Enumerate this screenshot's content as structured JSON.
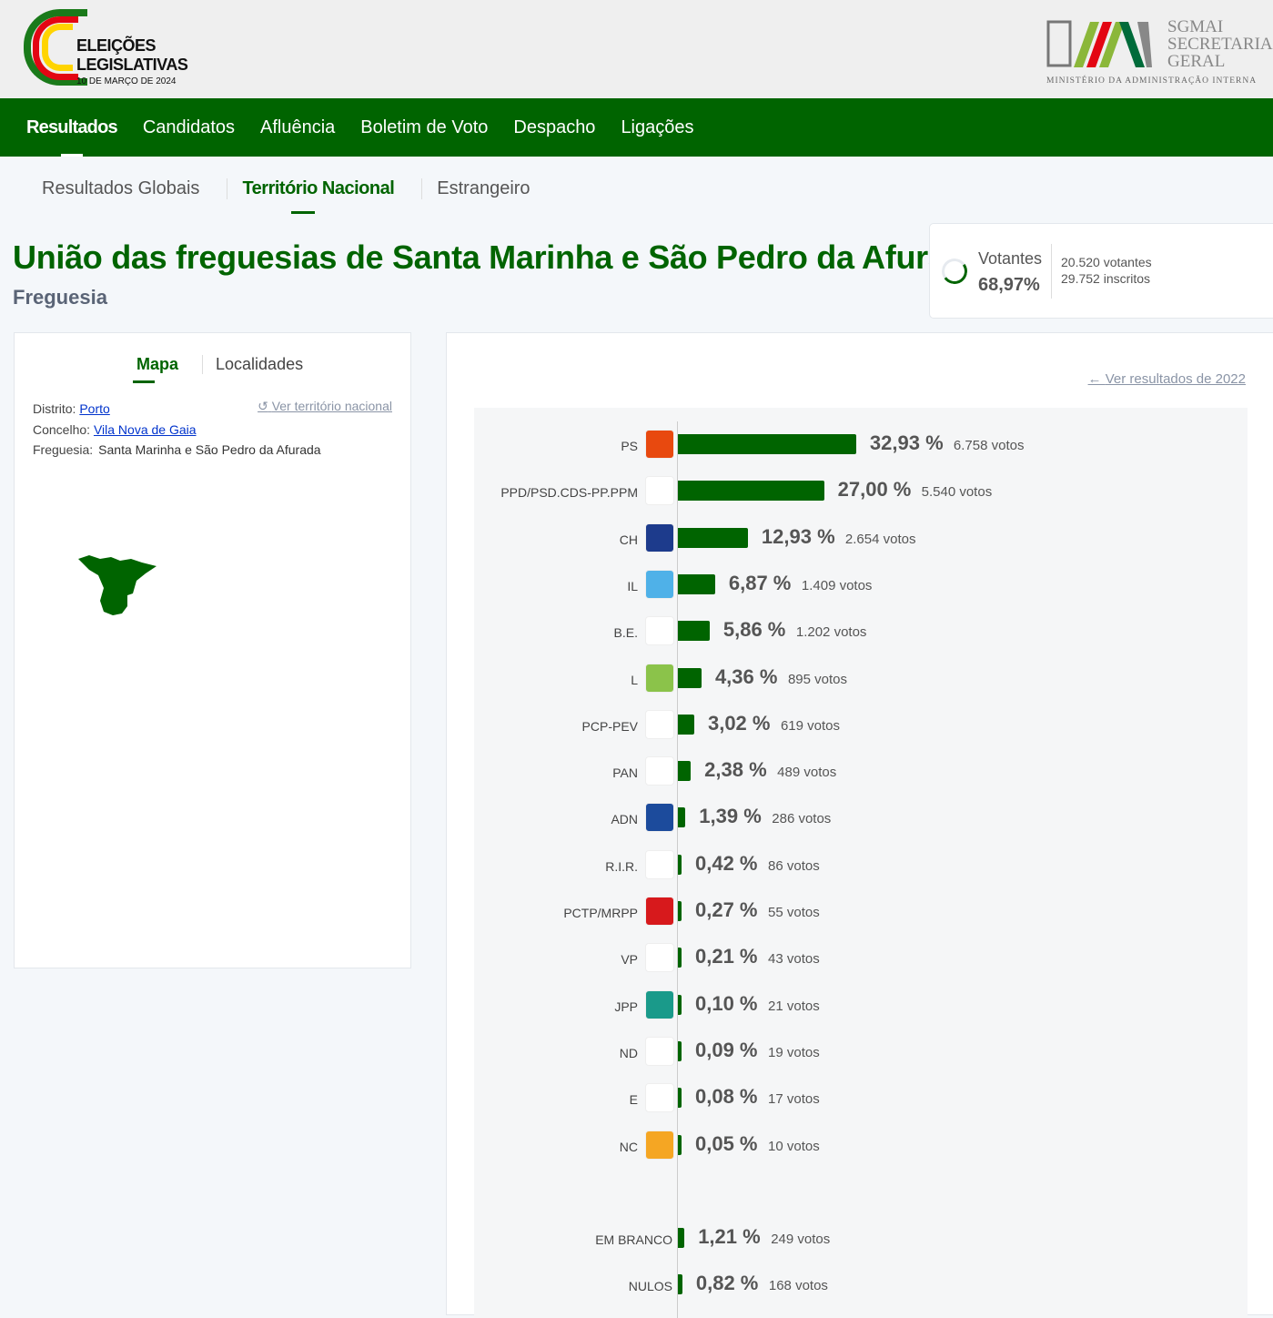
{
  "header": {
    "logo_title": "ELEIÇÕES LEGISLATIVAS",
    "logo_date": "10 DE MARÇO DE 2024",
    "org_name": "SGMAI SECRETARIA GERAL",
    "org_ministry": "MINISTÉRIO DA ADMINISTRAÇÃO INTERNA"
  },
  "nav": [
    "Resultados",
    "Candidatos",
    "Afluência",
    "Boletim de Voto",
    "Despacho",
    "Ligações"
  ],
  "subnav": [
    "Resultados Globais",
    "Território Nacional",
    "Estrangeiro"
  ],
  "title": "União das freguesias de Santa Marinha e São Pedro da Afurada",
  "kind": "Freguesia",
  "turnout": {
    "label": "Votantes",
    "percent": "68,97%",
    "fraction": 0.6897,
    "voters": "20.520 votantes",
    "registered": "29.752 inscritos"
  },
  "left": {
    "tabs": [
      "Mapa",
      "Localidades"
    ],
    "distrito_label": "Distrito:",
    "distrito": "Porto",
    "concelho_label": "Concelho:",
    "concelho": "Vila Nova de Gaia",
    "freguesia_label": "Freguesia:",
    "freguesia": "Santa Marinha e São Pedro da Afurada",
    "link": "Ver território nacional"
  },
  "results_link": "Ver resultados de 2022",
  "chart_data": {
    "type": "bar",
    "orientation": "horizontal",
    "bar_color": "#006400",
    "rows": [
      {
        "party": "PS",
        "pct": 32.93,
        "pct_label": "32,93 %",
        "votes": "6.758 votos",
        "logo_color": "#e8490f"
      },
      {
        "party": "PPD/PSD.CDS-PP.PPM",
        "pct": 27.0,
        "pct_label": "27,00 %",
        "votes": "5.540 votos",
        "logo_color": "#ffffff"
      },
      {
        "party": "CH",
        "pct": 12.93,
        "pct_label": "12,93 %",
        "votes": "2.654 votos",
        "logo_color": "#1d3b8c"
      },
      {
        "party": "IL",
        "pct": 6.87,
        "pct_label": "6,87 %",
        "votes": "1.409 votos",
        "logo_color": "#4fb1e8"
      },
      {
        "party": "B.E.",
        "pct": 5.86,
        "pct_label": "5,86 %",
        "votes": "1.202 votos",
        "logo_color": "#ffffff"
      },
      {
        "party": "L",
        "pct": 4.36,
        "pct_label": "4,36 %",
        "votes": "895 votos",
        "logo_color": "#8bc34a"
      },
      {
        "party": "PCP-PEV",
        "pct": 3.02,
        "pct_label": "3,02 %",
        "votes": "619 votos",
        "logo_color": "#ffffff"
      },
      {
        "party": "PAN",
        "pct": 2.38,
        "pct_label": "2,38 %",
        "votes": "489 votos",
        "logo_color": "#ffffff"
      },
      {
        "party": "ADN",
        "pct": 1.39,
        "pct_label": "1,39 %",
        "votes": "286 votos",
        "logo_color": "#1c4b9c"
      },
      {
        "party": "R.I.R.",
        "pct": 0.42,
        "pct_label": "0,42 %",
        "votes": "86 votos",
        "logo_color": "#ffffff"
      },
      {
        "party": "PCTP/MRPP",
        "pct": 0.27,
        "pct_label": "0,27 %",
        "votes": "55 votos",
        "logo_color": "#d7191c"
      },
      {
        "party": "VP",
        "pct": 0.21,
        "pct_label": "0,21 %",
        "votes": "43 votos",
        "logo_color": "#ffffff"
      },
      {
        "party": "JPP",
        "pct": 0.1,
        "pct_label": "0,10 %",
        "votes": "21 votos",
        "logo_color": "#1a9a8a"
      },
      {
        "party": "ND",
        "pct": 0.09,
        "pct_label": "0,09 %",
        "votes": "19 votos",
        "logo_color": "#ffffff"
      },
      {
        "party": "E",
        "pct": 0.08,
        "pct_label": "0,08 %",
        "votes": "17 votos",
        "logo_color": "#ffffff"
      },
      {
        "party": "NC",
        "pct": 0.05,
        "pct_label": "0,05 %",
        "votes": "10 votos",
        "logo_color": "#f5a623"
      }
    ],
    "blank_null": [
      {
        "party": "EM BRANCO",
        "pct": 1.21,
        "pct_label": "1,21 %",
        "votes": "249 votos"
      },
      {
        "party": "NULOS",
        "pct": 0.82,
        "pct_label": "0,82 %",
        "votes": "168 votos"
      }
    ]
  }
}
